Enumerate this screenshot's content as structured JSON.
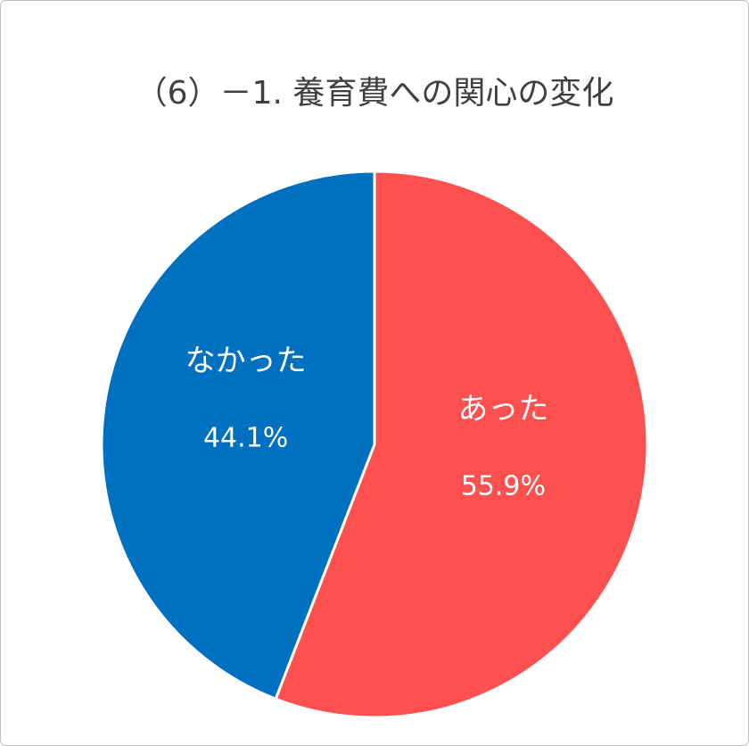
{
  "chart_data": {
    "type": "pie",
    "title": "（6）－1. 養育費への関心の変化",
    "categories": [
      "あった",
      "なかった"
    ],
    "values": [
      55.9,
      44.1
    ],
    "value_labels": [
      "55.9%",
      "44.1%"
    ],
    "colors": [
      "#FF5050",
      "#0070C0"
    ]
  }
}
